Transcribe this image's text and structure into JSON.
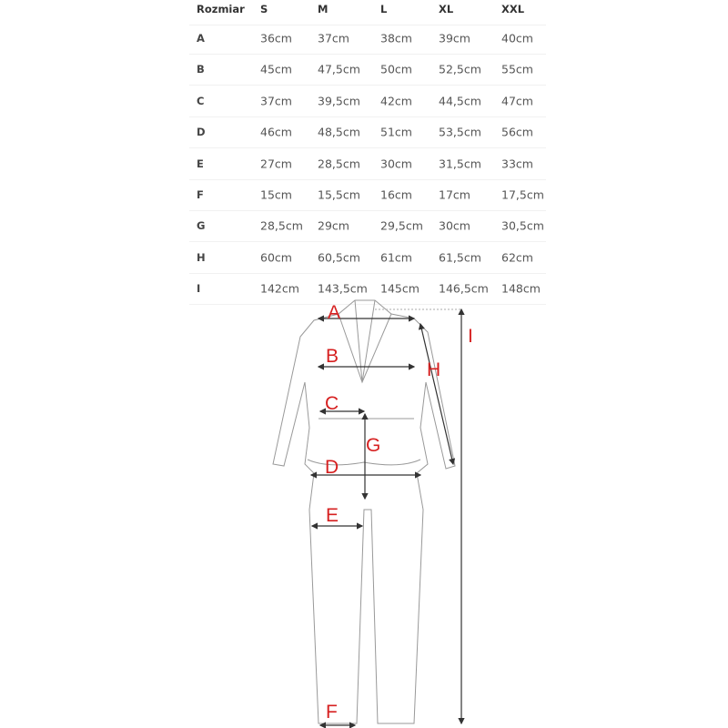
{
  "table": {
    "headers": [
      "Rozmiar",
      "S",
      "M",
      "L",
      "XL",
      "XXL"
    ],
    "rows": [
      {
        "label": "A",
        "values": [
          "36cm",
          "37cm",
          "38cm",
          "39cm",
          "40cm"
        ]
      },
      {
        "label": "B",
        "values": [
          "45cm",
          "47,5cm",
          "50cm",
          "52,5cm",
          "55cm"
        ]
      },
      {
        "label": "C",
        "values": [
          "37cm",
          "39,5cm",
          "42cm",
          "44,5cm",
          "47cm"
        ]
      },
      {
        "label": "D",
        "values": [
          "46cm",
          "48,5cm",
          "51cm",
          "53,5cm",
          "56cm"
        ]
      },
      {
        "label": "E",
        "values": [
          "27cm",
          "28,5cm",
          "30cm",
          "31,5cm",
          "33cm"
        ]
      },
      {
        "label": "F",
        "values": [
          "15cm",
          "15,5cm",
          "16cm",
          "17cm",
          "17,5cm"
        ]
      },
      {
        "label": "G",
        "values": [
          "28,5cm",
          "29cm",
          "29,5cm",
          "30cm",
          "30,5cm"
        ]
      },
      {
        "label": "H",
        "values": [
          "60cm",
          "60,5cm",
          "61cm",
          "61,5cm",
          "62cm"
        ]
      },
      {
        "label": "I",
        "values": [
          "142cm",
          "143,5cm",
          "145cm",
          "146,5cm",
          "148cm"
        ]
      }
    ]
  },
  "diagram": {
    "labels": {
      "A": "A",
      "B": "B",
      "C": "C",
      "D": "D",
      "E": "E",
      "F": "F",
      "G": "G",
      "H": "H",
      "I": "I"
    },
    "label_color": "#d62020"
  }
}
